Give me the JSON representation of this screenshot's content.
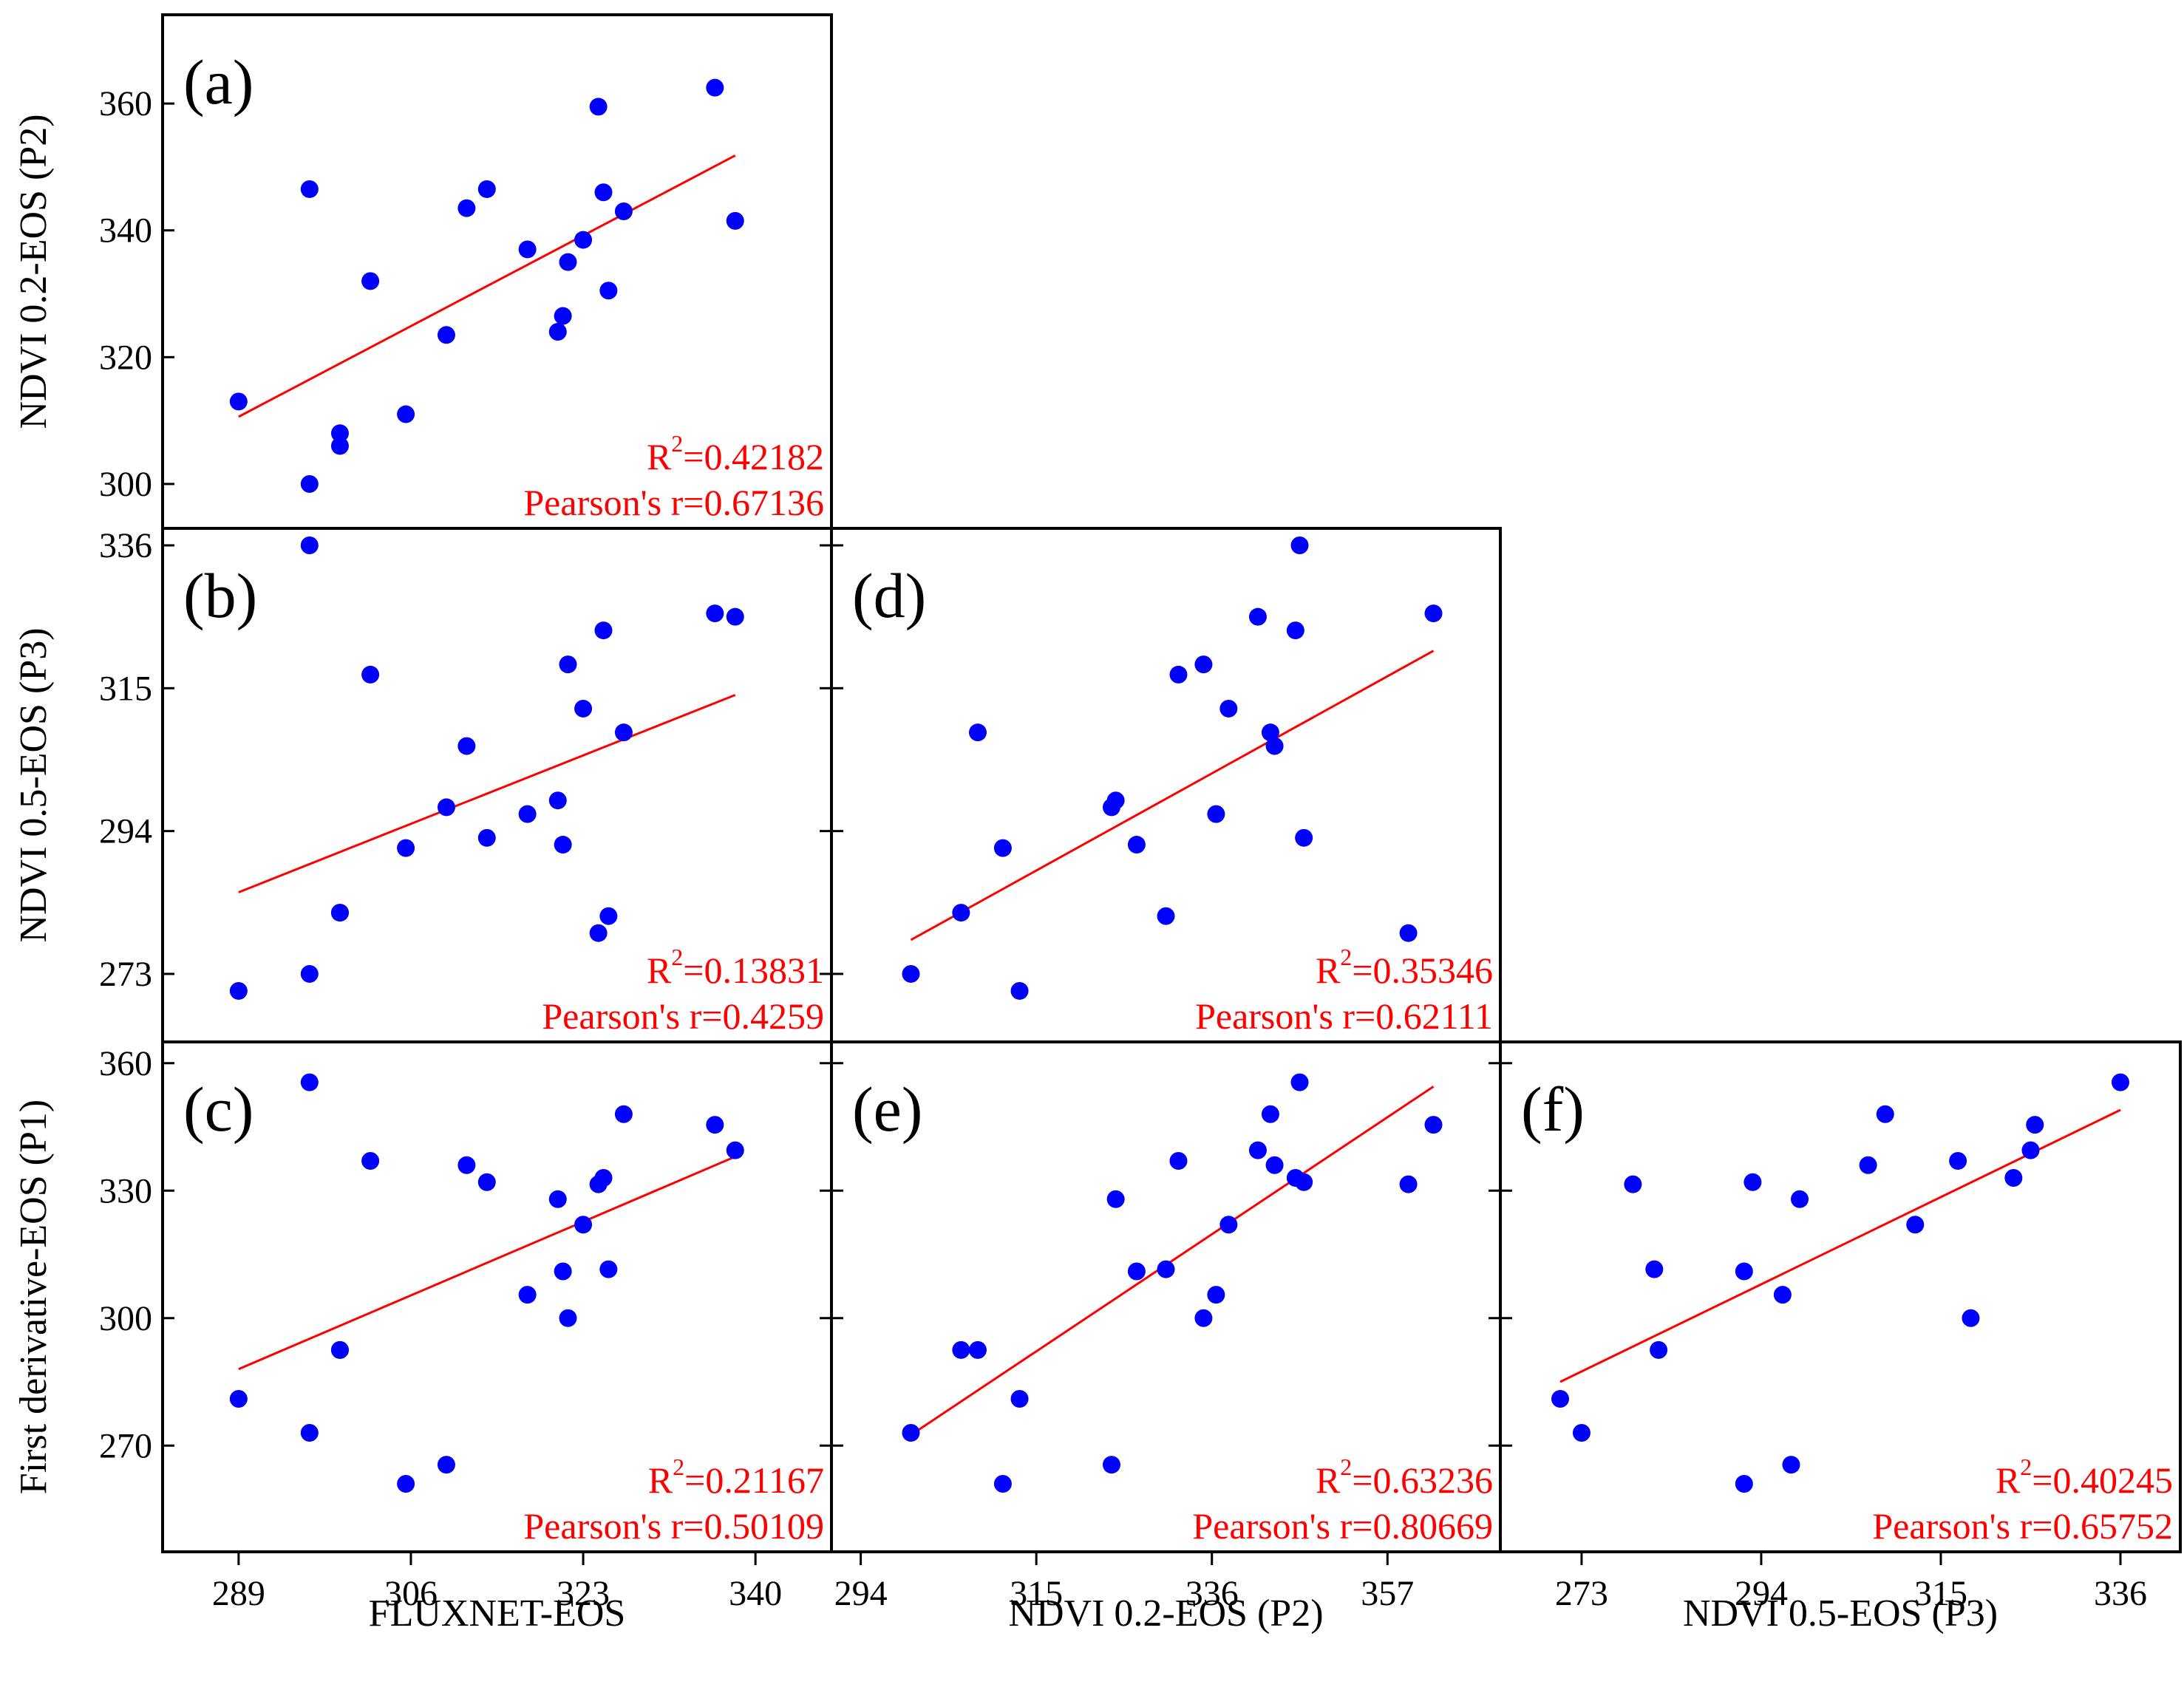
{
  "chart_data": [
    {
      "id": "a",
      "type": "scatter",
      "panel_label": "(a)",
      "xlabel": "",
      "ylabel": "NDVI 0.2-EOS (P2)",
      "xlim": [
        281.5,
        347.5
      ],
      "ylim": [
        293,
        374
      ],
      "yticks": [
        300,
        320,
        340,
        360
      ],
      "xticks": [],
      "r2_prefix": "R",
      "r2_sup": "2",
      "r2_value": "=0.42182",
      "pearson": "Pearson's r=0.67136",
      "fit": {
        "x": [
          289,
          338
        ],
        "y": [
          310.6,
          351.8
        ]
      },
      "points": [
        {
          "x": 289,
          "y": 313
        },
        {
          "x": 296,
          "y": 300
        },
        {
          "x": 296,
          "y": 346.5
        },
        {
          "x": 299,
          "y": 306
        },
        {
          "x": 299,
          "y": 308
        },
        {
          "x": 302,
          "y": 332
        },
        {
          "x": 305.5,
          "y": 311
        },
        {
          "x": 309.5,
          "y": 323.5
        },
        {
          "x": 311.5,
          "y": 343.5
        },
        {
          "x": 313.5,
          "y": 346.5
        },
        {
          "x": 317.5,
          "y": 337
        },
        {
          "x": 320.5,
          "y": 324
        },
        {
          "x": 321,
          "y": 326.5
        },
        {
          "x": 321.5,
          "y": 335
        },
        {
          "x": 323,
          "y": 338.5
        },
        {
          "x": 324.5,
          "y": 359.5
        },
        {
          "x": 325,
          "y": 346
        },
        {
          "x": 325.5,
          "y": 330.5
        },
        {
          "x": 327,
          "y": 343
        },
        {
          "x": 336,
          "y": 362.5
        },
        {
          "x": 338,
          "y": 341.5
        }
      ]
    },
    {
      "id": "b",
      "type": "scatter",
      "panel_label": "(b)",
      "xlabel": "",
      "ylabel": "NDVI 0.5-EOS (P3)",
      "xlim": [
        281.5,
        347.5
      ],
      "ylim": [
        263,
        338.5
      ],
      "yticks": [
        273,
        294,
        315,
        336
      ],
      "xticks": [],
      "r2_prefix": "R",
      "r2_sup": "2",
      "r2_value": "=0.13831",
      "pearson": "Pearson's r=0.4259",
      "fit": {
        "x": [
          289,
          338
        ],
        "y": [
          285,
          314
        ]
      },
      "points": [
        {
          "x": 289,
          "y": 270.5
        },
        {
          "x": 296,
          "y": 273
        },
        {
          "x": 296,
          "y": 336
        },
        {
          "x": 299,
          "y": 282
        },
        {
          "x": 299,
          "y": 282
        },
        {
          "x": 302,
          "y": 317
        },
        {
          "x": 305.5,
          "y": 291.5
        },
        {
          "x": 309.5,
          "y": 297.5
        },
        {
          "x": 311.5,
          "y": 306.5
        },
        {
          "x": 313.5,
          "y": 293
        },
        {
          "x": 317.5,
          "y": 296.5
        },
        {
          "x": 320.5,
          "y": 298.5
        },
        {
          "x": 321,
          "y": 292
        },
        {
          "x": 321.5,
          "y": 318.5
        },
        {
          "x": 323,
          "y": 312
        },
        {
          "x": 324.5,
          "y": 279
        },
        {
          "x": 325,
          "y": 323.5
        },
        {
          "x": 325.5,
          "y": 281.5
        },
        {
          "x": 327,
          "y": 308.5
        },
        {
          "x": 336,
          "y": 326
        },
        {
          "x": 338,
          "y": 325.5
        }
      ]
    },
    {
      "id": "c",
      "type": "scatter",
      "panel_label": "(c)",
      "xlabel": "FLUXNET-EOS",
      "ylabel": "First derivative-EOS (P1)",
      "xlim": [
        281.5,
        347.5
      ],
      "ylim": [
        245,
        365
      ],
      "yticks": [
        270,
        300,
        330,
        360
      ],
      "xticks": [
        289,
        306,
        323,
        340
      ],
      "r2_prefix": "R",
      "r2_sup": "2",
      "r2_value": "=0.21167",
      "pearson": "Pearson's r=0.50109",
      "fit": {
        "x": [
          289,
          338
        ],
        "y": [
          288,
          338
        ]
      },
      "points": [
        {
          "x": 289,
          "y": 281
        },
        {
          "x": 296,
          "y": 273
        },
        {
          "x": 296,
          "y": 355.5
        },
        {
          "x": 299,
          "y": 292.5
        },
        {
          "x": 299,
          "y": 292.5
        },
        {
          "x": 302,
          "y": 337
        },
        {
          "x": 305.5,
          "y": 261
        },
        {
          "x": 309.5,
          "y": 265.5
        },
        {
          "x": 311.5,
          "y": 336
        },
        {
          "x": 313.5,
          "y": 332
        },
        {
          "x": 317.5,
          "y": 305.5
        },
        {
          "x": 320.5,
          "y": 328
        },
        {
          "x": 321,
          "y": 311
        },
        {
          "x": 321.5,
          "y": 300
        },
        {
          "x": 323,
          "y": 322
        },
        {
          "x": 324.5,
          "y": 331.5
        },
        {
          "x": 325,
          "y": 333
        },
        {
          "x": 325.5,
          "y": 311.5
        },
        {
          "x": 327,
          "y": 348
        },
        {
          "x": 336,
          "y": 345.5
        },
        {
          "x": 338,
          "y": 339.5
        }
      ]
    },
    {
      "id": "d",
      "type": "scatter",
      "panel_label": "(d)",
      "xlabel": "",
      "ylabel": "",
      "xlim": [
        290.5,
        370.5
      ],
      "ylim": [
        263,
        338.5
      ],
      "yticks": [
        273,
        294,
        315,
        336
      ],
      "xticks": [],
      "r2_prefix": "R",
      "r2_sup": "2",
      "r2_value": "=0.35346",
      "pearson": "Pearson's r=0.62111",
      "fit": {
        "x": [
          300,
          362.5
        ],
        "y": [
          278,
          320.5
        ]
      },
      "points": [
        {
          "x": 300,
          "y": 273
        },
        {
          "x": 306,
          "y": 282
        },
        {
          "x": 308,
          "y": 308.5
        },
        {
          "x": 311,
          "y": 291.5
        },
        {
          "x": 313,
          "y": 270.5
        },
        {
          "x": 324,
          "y": 297.5
        },
        {
          "x": 324.5,
          "y": 298.5
        },
        {
          "x": 327,
          "y": 292
        },
        {
          "x": 330.5,
          "y": 281.5
        },
        {
          "x": 332,
          "y": 317
        },
        {
          "x": 335,
          "y": 318.5
        },
        {
          "x": 336.5,
          "y": 296.5
        },
        {
          "x": 338,
          "y": 312
        },
        {
          "x": 341.5,
          "y": 325.5
        },
        {
          "x": 343,
          "y": 308.5
        },
        {
          "x": 343.5,
          "y": 306.5
        },
        {
          "x": 346,
          "y": 323.5
        },
        {
          "x": 346.5,
          "y": 336
        },
        {
          "x": 347,
          "y": 293
        },
        {
          "x": 359.5,
          "y": 279
        },
        {
          "x": 362.5,
          "y": 326
        }
      ]
    },
    {
      "id": "e",
      "type": "scatter",
      "panel_label": "(e)",
      "xlabel": "NDVI 0.2-EOS (P2)",
      "ylabel": "",
      "xlim": [
        290.5,
        370.5
      ],
      "ylim": [
        245,
        365
      ],
      "yticks": [
        270,
        300,
        330,
        360
      ],
      "xticks": [
        294,
        315,
        336,
        357
      ],
      "r2_prefix": "R",
      "r2_sup": "2",
      "r2_value": "=0.63236",
      "pearson": "Pearson's r=0.80669",
      "fit": {
        "x": [
          300,
          362.5
        ],
        "y": [
          272.5,
          354.5
        ]
      },
      "points": [
        {
          "x": 300,
          "y": 273
        },
        {
          "x": 306,
          "y": 292.5
        },
        {
          "x": 308,
          "y": 292.5
        },
        {
          "x": 311,
          "y": 261
        },
        {
          "x": 313,
          "y": 281
        },
        {
          "x": 324,
          "y": 265.5
        },
        {
          "x": 324.5,
          "y": 328
        },
        {
          "x": 327,
          "y": 311
        },
        {
          "x": 330.5,
          "y": 311.5
        },
        {
          "x": 332,
          "y": 337
        },
        {
          "x": 335,
          "y": 300
        },
        {
          "x": 336.5,
          "y": 305.5
        },
        {
          "x": 338,
          "y": 322
        },
        {
          "x": 341.5,
          "y": 339.5
        },
        {
          "x": 343,
          "y": 348
        },
        {
          "x": 343.5,
          "y": 336
        },
        {
          "x": 346,
          "y": 333
        },
        {
          "x": 346.5,
          "y": 355.5
        },
        {
          "x": 347,
          "y": 332
        },
        {
          "x": 359.5,
          "y": 331.5
        },
        {
          "x": 362.5,
          "y": 345.5
        }
      ]
    },
    {
      "id": "f",
      "type": "scatter",
      "panel_label": "(f)",
      "xlabel": "NDVI 0.5-EOS (P3)",
      "ylabel": "",
      "xlim": [
        263.5,
        343
      ],
      "ylim": [
        245,
        365
      ],
      "yticks": [
        270,
        300,
        330,
        360
      ],
      "xticks": [
        273,
        294,
        315,
        336
      ],
      "r2_prefix": "R",
      "r2_sup": "2",
      "r2_value": "=0.40245",
      "pearson": "Pearson's r=0.65752",
      "fit": {
        "x": [
          270.5,
          336
        ],
        "y": [
          285,
          349
        ]
      },
      "points": [
        {
          "x": 270.5,
          "y": 281
        },
        {
          "x": 273,
          "y": 273
        },
        {
          "x": 279,
          "y": 331.5
        },
        {
          "x": 281.5,
          "y": 311.5
        },
        {
          "x": 282,
          "y": 292.5
        },
        {
          "x": 292,
          "y": 261
        },
        {
          "x": 292,
          "y": 311
        },
        {
          "x": 293,
          "y": 332
        },
        {
          "x": 296.5,
          "y": 305.5
        },
        {
          "x": 297.5,
          "y": 265.5
        },
        {
          "x": 298.5,
          "y": 328
        },
        {
          "x": 306.5,
          "y": 336
        },
        {
          "x": 308.5,
          "y": 348
        },
        {
          "x": 312,
          "y": 322
        },
        {
          "x": 317,
          "y": 337
        },
        {
          "x": 318.5,
          "y": 300
        },
        {
          "x": 323.5,
          "y": 333
        },
        {
          "x": 325.5,
          "y": 339.5
        },
        {
          "x": 326,
          "y": 345.5
        },
        {
          "x": 336,
          "y": 355.5
        }
      ]
    }
  ]
}
